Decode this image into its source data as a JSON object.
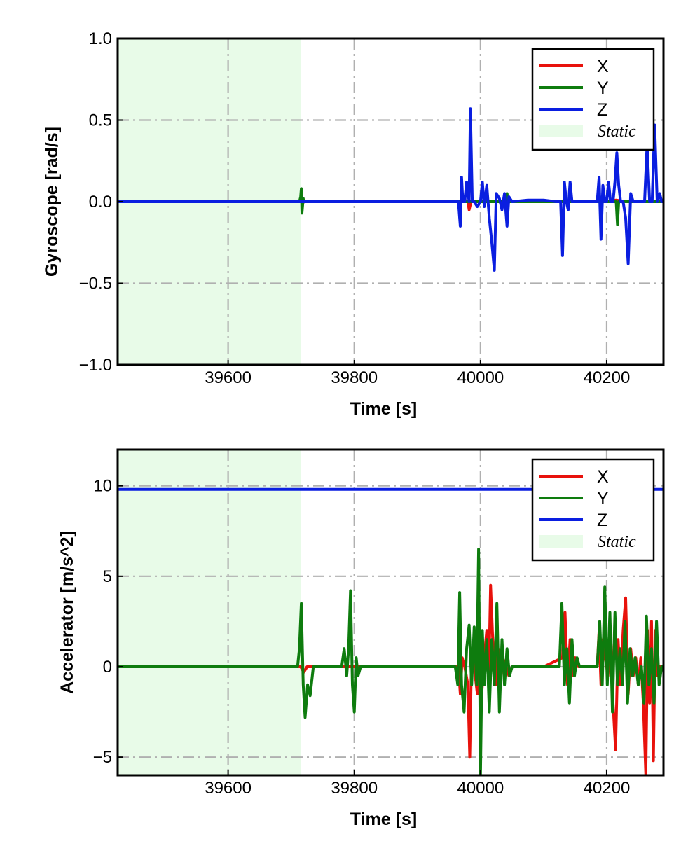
{
  "chart_data": [
    {
      "type": "line",
      "xlabel": "Time [s]",
      "ylabel": "Gyroscope [rad/s]",
      "xlim": [
        39425,
        40290
      ],
      "ylim": [
        -1.0,
        1.0
      ],
      "xticks": [
        39600,
        39800,
        40000,
        40200
      ],
      "xtick_labels": [
        "39600",
        "39800",
        "40000",
        "40200"
      ],
      "yticks": [
        -1.0,
        -0.5,
        0.0,
        0.5,
        1.0
      ],
      "ytick_labels": [
        "−1.0",
        "−0.5",
        "0.0",
        "0.5",
        "1.0"
      ],
      "grid": true,
      "legend_position": "top-right",
      "static_region": {
        "label": "Static",
        "x_start": 39425,
        "x_end": 39715,
        "color": "#e8fbe8"
      },
      "series": [
        {
          "name": "X",
          "color": "#e8120c",
          "x": [
            39425,
            39715,
            39716,
            39718,
            39720,
            39970,
            39975,
            39980,
            39982,
            39985,
            40000,
            40040,
            40100,
            40200,
            40215,
            40230,
            40290
          ],
          "y": [
            0.0,
            0.0,
            0.01,
            -0.01,
            0.0,
            0.0,
            0.01,
            0.0,
            -0.05,
            0.0,
            0.0,
            0.0,
            0.0,
            0.0,
            0.01,
            0.0,
            0.0
          ]
        },
        {
          "name": "Y",
          "color": "#0e7c0e",
          "x": [
            39425,
            39713,
            39715,
            39716,
            39717,
            39719,
            39720,
            39970,
            40000,
            40040,
            40042,
            40044,
            40100,
            40200,
            40215,
            40217,
            40219,
            40290
          ],
          "y": [
            0.0,
            0.0,
            0.03,
            0.08,
            -0.07,
            0.02,
            0.0,
            0.0,
            0.0,
            0.0,
            0.05,
            0.0,
            0.0,
            0.0,
            0.0,
            -0.14,
            0.0,
            0.0
          ]
        },
        {
          "name": "Z",
          "color": "#0a1ee0",
          "x": [
            39425,
            39965,
            39968,
            39970,
            39972,
            39975,
            39978,
            39982,
            39984,
            39987,
            39990,
            39995,
            40000,
            40003,
            40006,
            40010,
            40014,
            40018,
            40022,
            40025,
            40030,
            40034,
            40038,
            40042,
            40045,
            40050,
            40075,
            40100,
            40120,
            40127,
            40130,
            40133,
            40136,
            40139,
            40142,
            40145,
            40150,
            40185,
            40188,
            40191,
            40194,
            40197,
            40200,
            40203,
            40206,
            40210,
            40213,
            40216,
            40219,
            40222,
            40226,
            40230,
            40234,
            40238,
            40242,
            40250,
            40260,
            40264,
            40268,
            40272,
            40276,
            40280,
            40284,
            40287,
            40290
          ],
          "y": [
            0.0,
            0.0,
            -0.15,
            0.15,
            0.0,
            0.0,
            0.12,
            0.0,
            0.57,
            0.0,
            0.0,
            -0.03,
            0.0,
            0.12,
            -0.03,
            0.1,
            -0.1,
            -0.25,
            -0.42,
            0.05,
            0.02,
            -0.05,
            0.05,
            -0.15,
            0.03,
            0.0,
            0.01,
            0.01,
            0.0,
            0.0,
            -0.33,
            0.12,
            0.0,
            -0.05,
            0.12,
            0.0,
            0.0,
            0.0,
            0.15,
            -0.23,
            0.1,
            0.0,
            0.0,
            0.12,
            0.0,
            0.0,
            0.12,
            0.3,
            0.1,
            0.0,
            0.0,
            -0.1,
            -0.38,
            0.05,
            0.0,
            0.0,
            0.0,
            0.35,
            0.0,
            0.0,
            0.47,
            0.0,
            0.05,
            0.0,
            0.0
          ]
        }
      ]
    },
    {
      "type": "line",
      "xlabel": "Time [s]",
      "ylabel": "Accelerator [m/s^2]",
      "xlim": [
        39425,
        40290
      ],
      "ylim": [
        -6.0,
        12.0
      ],
      "xticks": [
        39600,
        39800,
        40000,
        40200
      ],
      "xtick_labels": [
        "39600",
        "39800",
        "40000",
        "40200"
      ],
      "yticks": [
        -5,
        0,
        5,
        10
      ],
      "ytick_labels": [
        "−5",
        "0",
        "5",
        "10"
      ],
      "grid": true,
      "legend_position": "top-right",
      "static_region": {
        "label": "Static",
        "x_start": 39425,
        "x_end": 39715,
        "color": "#e8fbe8"
      },
      "series": [
        {
          "name": "X",
          "color": "#e8120c",
          "x": [
            39425,
            39715,
            39720,
            39725,
            39800,
            39965,
            39968,
            39971,
            39975,
            39980,
            39983,
            39986,
            39990,
            39995,
            39998,
            40002,
            40006,
            40010,
            40013,
            40016,
            40020,
            40024,
            40028,
            40031,
            40035,
            40040,
            40045,
            40050,
            40100,
            40130,
            40134,
            40138,
            40142,
            40146,
            40150,
            40155,
            40185,
            40188,
            40191,
            40194,
            40198,
            40202,
            40206,
            40210,
            40214,
            40218,
            40222,
            40226,
            40230,
            40234,
            40238,
            40242,
            40246,
            40250,
            40254,
            40258,
            40262,
            40265,
            40268,
            40271,
            40274,
            40277,
            40280,
            40283,
            40286,
            40290
          ],
          "y": [
            0.0,
            0.0,
            -0.3,
            0.0,
            0.0,
            0.0,
            -1.5,
            0.5,
            0.0,
            -1.0,
            -5.0,
            1.0,
            0.0,
            -1.5,
            0.5,
            -1.5,
            0.5,
            2.0,
            -1.0,
            4.5,
            1.0,
            -1.0,
            1.0,
            -1.0,
            0.5,
            0.0,
            -0.5,
            0.0,
            0.0,
            0.5,
            3.0,
            -1.0,
            1.5,
            -0.5,
            0.5,
            0.0,
            0.0,
            2.0,
            -1.0,
            1.5,
            0.5,
            -0.5,
            2.0,
            -2.0,
            -4.6,
            1.5,
            -1.0,
            2.0,
            3.8,
            -1.5,
            1.0,
            -0.5,
            0.5,
            -1.0,
            0.5,
            -2.0,
            -6.0,
            2.0,
            -2.0,
            2.5,
            -5.2,
            2.0,
            -0.5,
            0.0,
            0.0,
            0.0
          ]
        },
        {
          "name": "Y",
          "color": "#0e7c0e",
          "x": [
            39425,
            39710,
            39713,
            39716,
            39719,
            39722,
            39726,
            39730,
            39735,
            39780,
            39784,
            39788,
            39791,
            39794,
            39797,
            39800,
            39803,
            39806,
            39810,
            39960,
            39964,
            39967,
            39970,
            39974,
            39978,
            39982,
            39986,
            39990,
            39994,
            39997,
            40000,
            40003,
            40006,
            40010,
            40014,
            40018,
            40022,
            40026,
            40030,
            40034,
            40038,
            40042,
            40046,
            40050,
            40125,
            40129,
            40133,
            40137,
            40141,
            40145,
            40149,
            40153,
            40157,
            40185,
            40189,
            40193,
            40197,
            40201,
            40205,
            40209,
            40213,
            40217,
            40221,
            40225,
            40229,
            40233,
            40237,
            40241,
            40245,
            40250,
            40255,
            40259,
            40263,
            40267,
            40271,
            40275,
            40279,
            40283,
            40287,
            40290
          ],
          "y": [
            0.0,
            0.0,
            1.0,
            3.5,
            -1.0,
            -2.8,
            -1.0,
            -1.6,
            0.0,
            0.0,
            1.0,
            -0.5,
            1.0,
            4.2,
            -1.0,
            -2.5,
            0.5,
            -0.5,
            0.0,
            0.0,
            -1.0,
            4.1,
            -1.0,
            -2.5,
            1.0,
            2.3,
            -1.0,
            2.2,
            -1.0,
            6.5,
            -6.0,
            2.0,
            -1.0,
            1.5,
            -2.5,
            1.5,
            -1.0,
            3.5,
            -2.5,
            1.5,
            -1.0,
            1.0,
            -0.5,
            0.0,
            0.0,
            3.5,
            -1.0,
            1.0,
            -2.0,
            1.5,
            -0.5,
            0.5,
            0.0,
            0.0,
            2.5,
            -1.0,
            4.4,
            -1.0,
            3.0,
            -2.5,
            3.0,
            -1.0,
            1.0,
            -1.0,
            2.5,
            -2.0,
            1.0,
            -0.5,
            0.5,
            -1.0,
            0.0,
            -2.0,
            2.8,
            -1.0,
            1.0,
            -2.0,
            2.5,
            -1.0,
            0.0,
            0.0
          ]
        },
        {
          "name": "Z",
          "color": "#0a1ee0",
          "x": [
            39425,
            39500,
            39600,
            39700,
            39800,
            39900,
            40000,
            40100,
            40200,
            40290
          ],
          "y": [
            9.8,
            9.8,
            9.8,
            9.8,
            9.8,
            9.8,
            9.8,
            9.8,
            9.8,
            9.8
          ]
        }
      ]
    }
  ]
}
